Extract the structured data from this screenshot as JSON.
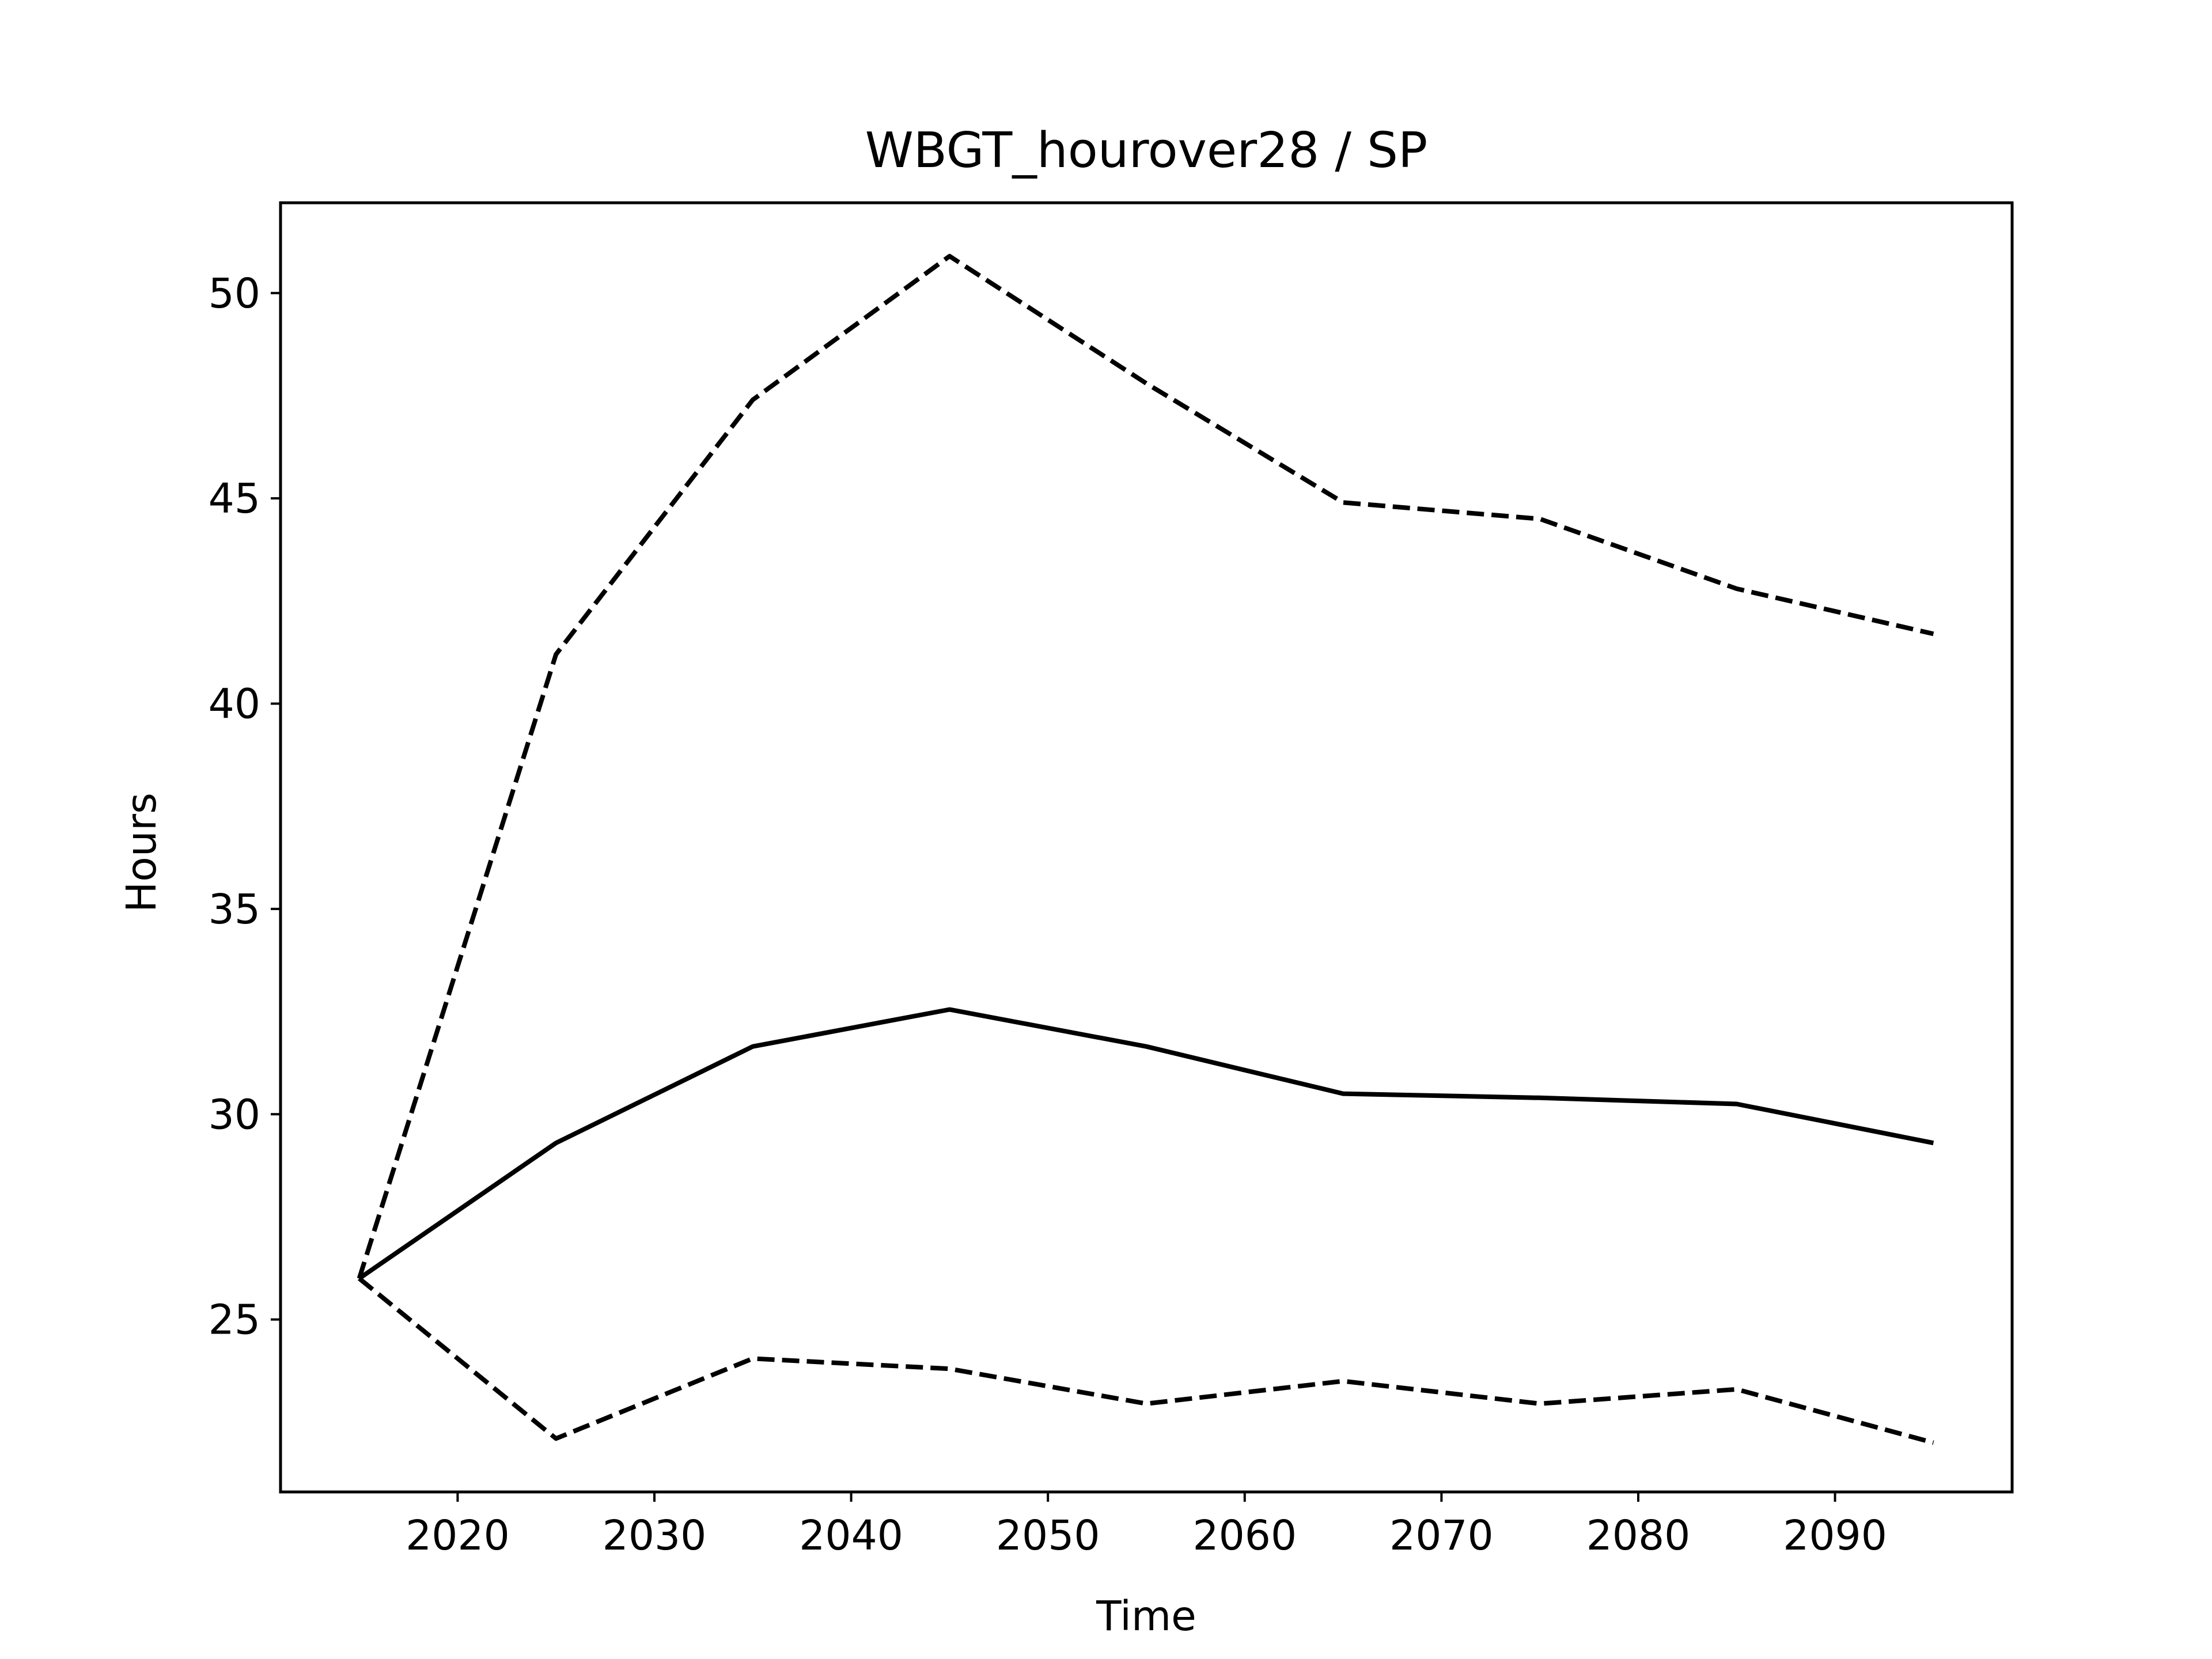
{
  "chart_data": {
    "type": "line",
    "title": "WBGT_hourover28 / SP",
    "xlabel": "Time",
    "ylabel": "Hours",
    "x": [
      2015,
      2025,
      2035,
      2045,
      2055,
      2065,
      2075,
      2085,
      2095
    ],
    "xlim": [
      2011,
      2099
    ],
    "ylim": [
      20.8,
      52.2
    ],
    "xticks": [
      2020,
      2030,
      2040,
      2050,
      2060,
      2070,
      2080,
      2090
    ],
    "yticks": [
      25,
      30,
      35,
      40,
      45,
      50
    ],
    "grid": false,
    "series": [
      {
        "style": "solid",
        "color": "#000000",
        "values": [
          26.0,
          29.3,
          31.65,
          32.55,
          31.65,
          30.5,
          30.4,
          30.25,
          29.3
        ]
      },
      {
        "style": "dashed",
        "color": "#000000",
        "values": [
          26.0,
          41.2,
          47.4,
          50.9,
          47.8,
          44.9,
          44.5,
          42.8,
          41.7
        ]
      },
      {
        "style": "dashed",
        "color": "#000000",
        "values": [
          26.0,
          22.1,
          24.05,
          23.8,
          22.95,
          23.5,
          22.95,
          23.3,
          22.0
        ]
      }
    ]
  }
}
